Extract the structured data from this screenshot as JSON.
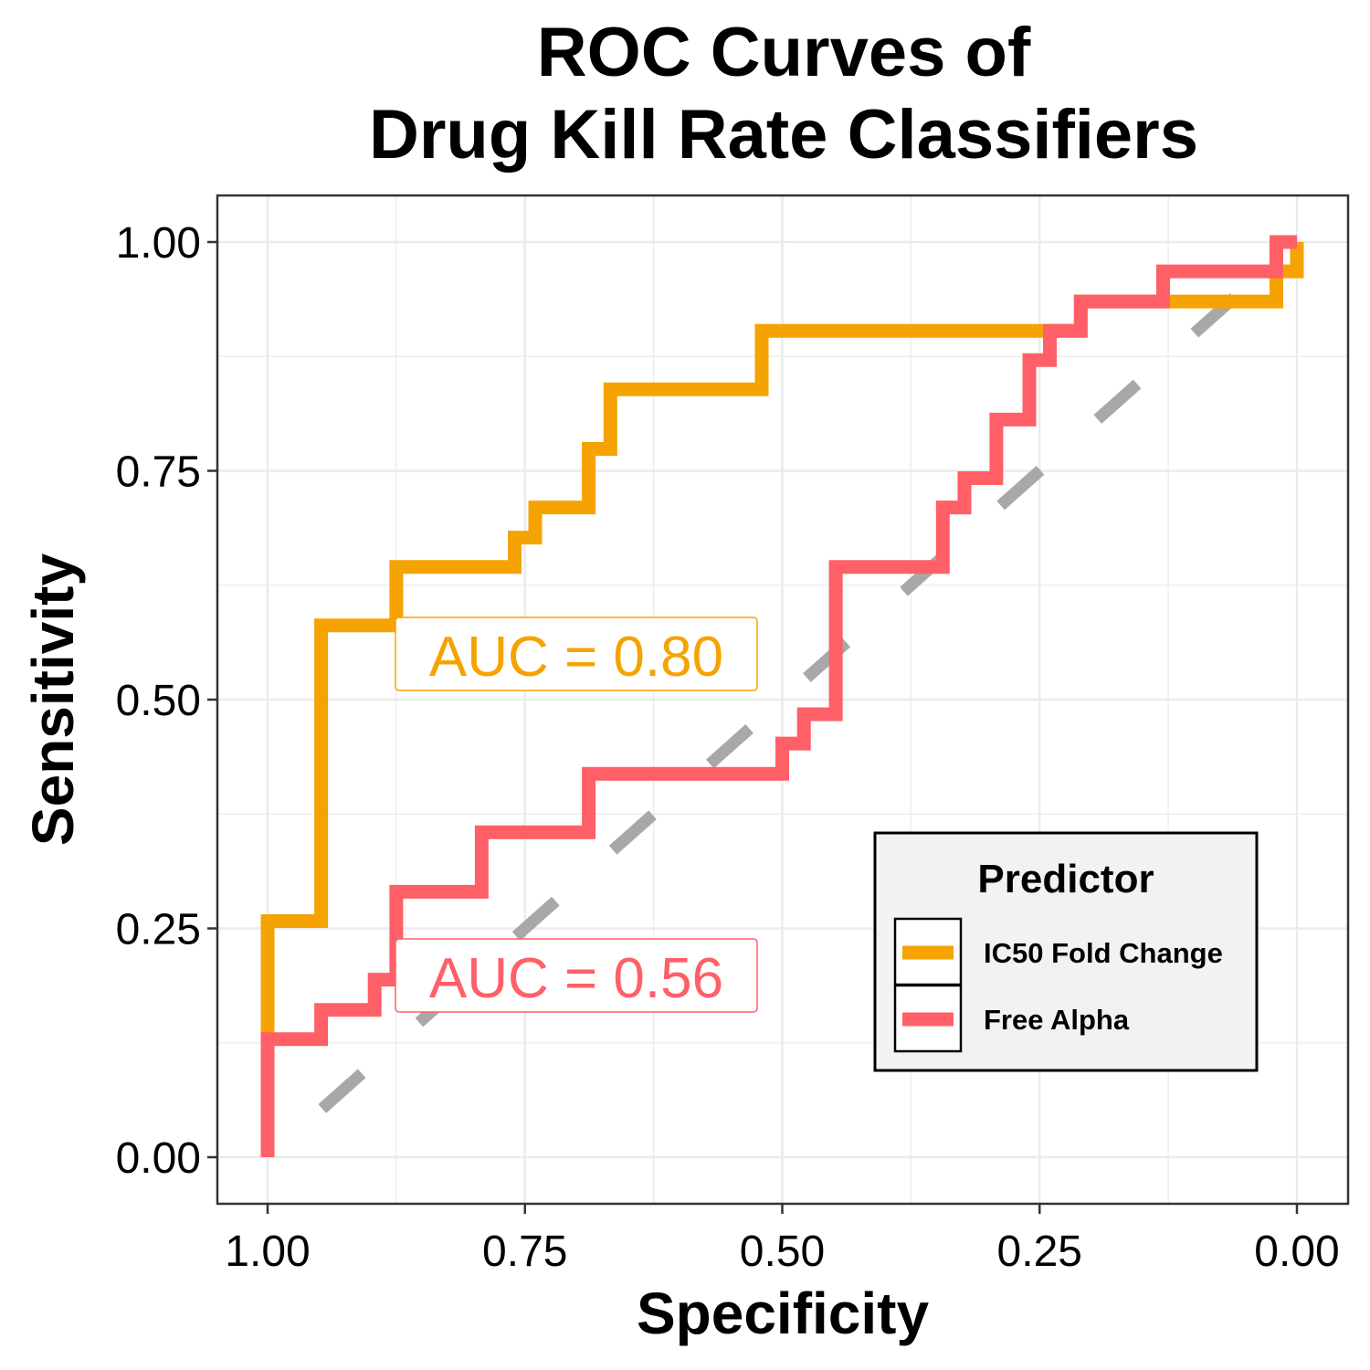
{
  "chart_data": {
    "type": "line",
    "title_lines": [
      "ROC Curves of",
      "Drug Kill Rate Classifiers"
    ],
    "xlabel": "Specificity",
    "ylabel": "Sensitivity",
    "xlim": [
      1.0,
      0.0
    ],
    "ylim": [
      0.0,
      1.0
    ],
    "x_reversed": true,
    "x_ticks": [
      "1.00",
      "0.75",
      "0.50",
      "0.25",
      "0.00"
    ],
    "y_ticks": [
      "0.00",
      "0.25",
      "0.50",
      "0.75",
      "1.00"
    ],
    "grid": true,
    "legend": {
      "title": "Predictor",
      "position": "bottom-right"
    },
    "reference_line": {
      "from": [
        1.0,
        0.0
      ],
      "to": [
        0.0,
        1.0
      ],
      "color": "#a8a8a8",
      "style": "dashed"
    },
    "series": [
      {
        "name": "IC50 Fold Change",
        "color": "#f5a300",
        "auc_label": "AUC = 0.80",
        "points": [
          [
            1.0,
            0.0
          ],
          [
            1.0,
            0.258
          ],
          [
            0.948,
            0.258
          ],
          [
            0.948,
            0.581
          ],
          [
            0.875,
            0.581
          ],
          [
            0.875,
            0.645
          ],
          [
            0.76,
            0.645
          ],
          [
            0.76,
            0.677
          ],
          [
            0.74,
            0.677
          ],
          [
            0.74,
            0.71
          ],
          [
            0.688,
            0.71
          ],
          [
            0.688,
            0.774
          ],
          [
            0.667,
            0.774
          ],
          [
            0.667,
            0.839
          ],
          [
            0.52,
            0.839
          ],
          [
            0.52,
            0.903
          ],
          [
            0.25,
            0.903
          ],
          [
            0.25,
            0.903
          ],
          [
            0.21,
            0.903
          ],
          [
            0.21,
            0.935
          ],
          [
            0.02,
            0.935
          ],
          [
            0.02,
            0.968
          ],
          [
            0.0,
            0.968
          ],
          [
            0.0,
            1.0
          ]
        ]
      },
      {
        "name": "Free Alpha",
        "color": "#ff5f66",
        "auc_label": "AUC = 0.56",
        "points": [
          [
            1.0,
            0.0
          ],
          [
            1.0,
            0.129
          ],
          [
            0.948,
            0.129
          ],
          [
            0.948,
            0.161
          ],
          [
            0.896,
            0.161
          ],
          [
            0.896,
            0.194
          ],
          [
            0.875,
            0.194
          ],
          [
            0.875,
            0.29
          ],
          [
            0.792,
            0.29
          ],
          [
            0.792,
            0.355
          ],
          [
            0.688,
            0.355
          ],
          [
            0.688,
            0.419
          ],
          [
            0.5,
            0.419
          ],
          [
            0.5,
            0.452
          ],
          [
            0.479,
            0.452
          ],
          [
            0.479,
            0.484
          ],
          [
            0.448,
            0.484
          ],
          [
            0.448,
            0.645
          ],
          [
            0.344,
            0.645
          ],
          [
            0.344,
            0.71
          ],
          [
            0.323,
            0.71
          ],
          [
            0.323,
            0.742
          ],
          [
            0.292,
            0.742
          ],
          [
            0.292,
            0.806
          ],
          [
            0.26,
            0.806
          ],
          [
            0.26,
            0.871
          ],
          [
            0.24,
            0.871
          ],
          [
            0.24,
            0.903
          ],
          [
            0.21,
            0.903
          ],
          [
            0.21,
            0.935
          ],
          [
            0.13,
            0.935
          ],
          [
            0.13,
            0.968
          ],
          [
            0.02,
            0.968
          ],
          [
            0.02,
            1.0
          ],
          [
            0.0,
            1.0
          ]
        ]
      }
    ]
  }
}
